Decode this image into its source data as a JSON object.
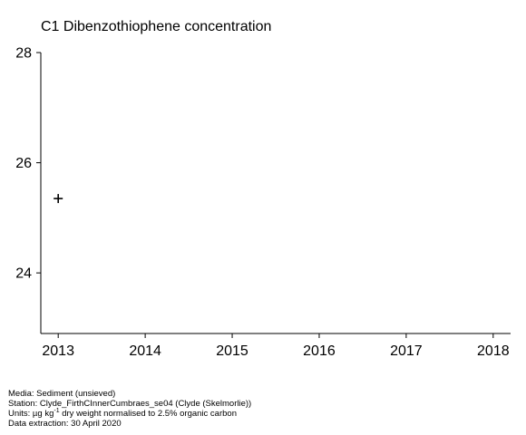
{
  "chart_data": {
    "type": "scatter",
    "title": "C1 Dibenzothiophene concentration",
    "xlabel": "",
    "ylabel": "",
    "x_ticks": [
      2013,
      2014,
      2015,
      2016,
      2017,
      2018
    ],
    "y_ticks": [
      24,
      26,
      28
    ],
    "xlim": [
      2012.8,
      2018.2
    ],
    "ylim": [
      22.9,
      28.0
    ],
    "grid": false,
    "marker": "plus",
    "points": [
      {
        "x": 2013,
        "y": 25.35
      }
    ]
  },
  "footer": {
    "media": "Media: Sediment (unsieved)",
    "station": "Station: Clyde_FirthCInnerCumbraes_se04 (Clyde (Skelmorlie))",
    "units_prefix": "Units:  µg kg",
    "units_sup": "-1",
    "units_suffix": " dry weight normalised to 2.5% organic carbon",
    "extraction": "Data extraction: 30 April 2020"
  }
}
